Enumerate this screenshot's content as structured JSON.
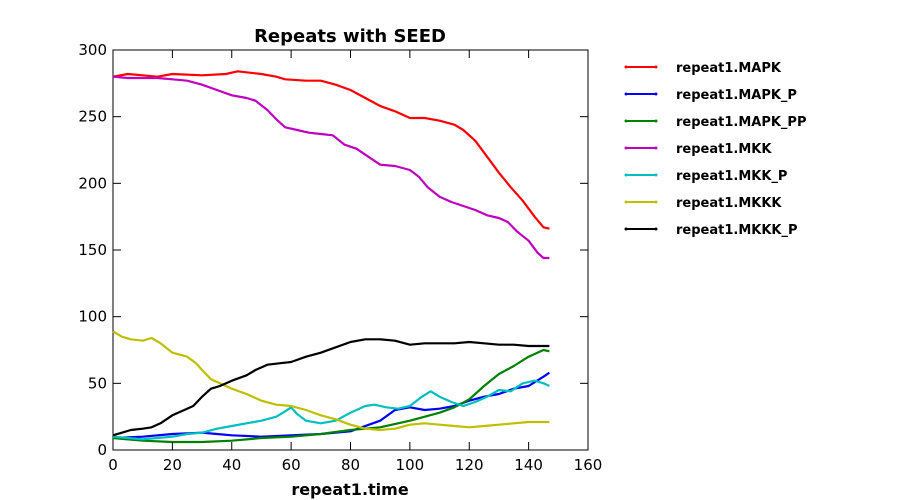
{
  "chart_data": {
    "type": "line",
    "title": "Repeats with SEED",
    "xlabel": "repeat1.time",
    "ylabel": "",
    "xlim": [
      0,
      160
    ],
    "ylim": [
      0,
      300
    ],
    "xticks": [
      0,
      20,
      40,
      60,
      80,
      100,
      120,
      140,
      160
    ],
    "yticks": [
      0,
      50,
      100,
      150,
      200,
      250,
      300
    ],
    "grid": false,
    "legend_position": "outside-right",
    "series": [
      {
        "name": "repeat1.MAPK",
        "color": "#ff0000",
        "points": [
          [
            0,
            280
          ],
          [
            5,
            282
          ],
          [
            10,
            281
          ],
          [
            15,
            280
          ],
          [
            20,
            282
          ],
          [
            30,
            281
          ],
          [
            38,
            282
          ],
          [
            42,
            284
          ],
          [
            46,
            283
          ],
          [
            50,
            282
          ],
          [
            55,
            280
          ],
          [
            58,
            278
          ],
          [
            65,
            277
          ],
          [
            70,
            277
          ],
          [
            75,
            274
          ],
          [
            80,
            270
          ],
          [
            85,
            264
          ],
          [
            90,
            258
          ],
          [
            95,
            254
          ],
          [
            100,
            249
          ],
          [
            105,
            249
          ],
          [
            110,
            247
          ],
          [
            115,
            244
          ],
          [
            118,
            240
          ],
          [
            122,
            232
          ],
          [
            126,
            220
          ],
          [
            130,
            208
          ],
          [
            134,
            197
          ],
          [
            138,
            187
          ],
          [
            142,
            175
          ],
          [
            145,
            167
          ],
          [
            147,
            166
          ]
        ]
      },
      {
        "name": "repeat1.MAPK_P",
        "color": "#0000ff",
        "points": [
          [
            0,
            9
          ],
          [
            10,
            10
          ],
          [
            20,
            12
          ],
          [
            30,
            13
          ],
          [
            35,
            12
          ],
          [
            40,
            11
          ],
          [
            50,
            10
          ],
          [
            60,
            11
          ],
          [
            70,
            12
          ],
          [
            80,
            14
          ],
          [
            90,
            22
          ],
          [
            95,
            30
          ],
          [
            100,
            32
          ],
          [
            105,
            30
          ],
          [
            110,
            31
          ],
          [
            115,
            33
          ],
          [
            120,
            37
          ],
          [
            125,
            40
          ],
          [
            130,
            42
          ],
          [
            135,
            46
          ],
          [
            140,
            48
          ],
          [
            145,
            55
          ],
          [
            147,
            58
          ]
        ]
      },
      {
        "name": "repeat1.MAPK_PP",
        "color": "#008000",
        "points": [
          [
            0,
            9
          ],
          [
            10,
            7
          ],
          [
            20,
            6
          ],
          [
            30,
            6
          ],
          [
            40,
            7
          ],
          [
            50,
            9
          ],
          [
            60,
            10
          ],
          [
            70,
            12
          ],
          [
            80,
            15
          ],
          [
            90,
            17
          ],
          [
            100,
            22
          ],
          [
            110,
            28
          ],
          [
            115,
            32
          ],
          [
            120,
            38
          ],
          [
            125,
            48
          ],
          [
            130,
            57
          ],
          [
            135,
            63
          ],
          [
            140,
            70
          ],
          [
            145,
            75
          ],
          [
            147,
            74
          ]
        ]
      },
      {
        "name": "repeat1.MKK",
        "color": "#bf00bf",
        "points": [
          [
            0,
            280
          ],
          [
            5,
            279
          ],
          [
            10,
            279
          ],
          [
            15,
            279
          ],
          [
            20,
            278
          ],
          [
            25,
            277
          ],
          [
            30,
            274
          ],
          [
            35,
            270
          ],
          [
            40,
            266
          ],
          [
            45,
            264
          ],
          [
            48,
            262
          ],
          [
            52,
            255
          ],
          [
            55,
            248
          ],
          [
            58,
            242
          ],
          [
            62,
            240
          ],
          [
            66,
            238
          ],
          [
            70,
            237
          ],
          [
            74,
            236
          ],
          [
            78,
            229
          ],
          [
            82,
            226
          ],
          [
            86,
            220
          ],
          [
            90,
            214
          ],
          [
            95,
            213
          ],
          [
            100,
            210
          ],
          [
            103,
            205
          ],
          [
            106,
            197
          ],
          [
            110,
            190
          ],
          [
            114,
            186
          ],
          [
            118,
            183
          ],
          [
            122,
            180
          ],
          [
            126,
            176
          ],
          [
            130,
            174
          ],
          [
            133,
            171
          ],
          [
            136,
            164
          ],
          [
            140,
            157
          ],
          [
            143,
            148
          ],
          [
            145,
            144
          ],
          [
            147,
            144
          ]
        ]
      },
      {
        "name": "repeat1.MKK_P",
        "color": "#00bfbf",
        "points": [
          [
            0,
            10
          ],
          [
            5,
            9
          ],
          [
            10,
            8
          ],
          [
            15,
            9
          ],
          [
            20,
            10
          ],
          [
            25,
            12
          ],
          [
            30,
            13
          ],
          [
            35,
            16
          ],
          [
            40,
            18
          ],
          [
            45,
            20
          ],
          [
            50,
            22
          ],
          [
            55,
            25
          ],
          [
            58,
            29
          ],
          [
            60,
            32
          ],
          [
            62,
            27
          ],
          [
            65,
            22
          ],
          [
            70,
            20
          ],
          [
            75,
            22
          ],
          [
            80,
            28
          ],
          [
            85,
            33
          ],
          [
            88,
            34
          ],
          [
            92,
            32
          ],
          [
            96,
            31
          ],
          [
            100,
            33
          ],
          [
            104,
            40
          ],
          [
            107,
            44
          ],
          [
            110,
            40
          ],
          [
            114,
            36
          ],
          [
            118,
            33
          ],
          [
            122,
            36
          ],
          [
            126,
            40
          ],
          [
            130,
            45
          ],
          [
            134,
            44
          ],
          [
            138,
            50
          ],
          [
            142,
            52
          ],
          [
            145,
            50
          ],
          [
            147,
            48
          ]
        ]
      },
      {
        "name": "repeat1.MKKK",
        "color": "#bfbf00",
        "points": [
          [
            0,
            89
          ],
          [
            3,
            85
          ],
          [
            6,
            83
          ],
          [
            10,
            82
          ],
          [
            13,
            84
          ],
          [
            16,
            80
          ],
          [
            20,
            73
          ],
          [
            25,
            70
          ],
          [
            28,
            65
          ],
          [
            30,
            60
          ],
          [
            33,
            53
          ],
          [
            36,
            50
          ],
          [
            40,
            46
          ],
          [
            45,
            42
          ],
          [
            50,
            37
          ],
          [
            55,
            34
          ],
          [
            60,
            33
          ],
          [
            65,
            30
          ],
          [
            70,
            26
          ],
          [
            75,
            23
          ],
          [
            80,
            19
          ],
          [
            85,
            16
          ],
          [
            90,
            15
          ],
          [
            95,
            16
          ],
          [
            100,
            19
          ],
          [
            105,
            20
          ],
          [
            110,
            19
          ],
          [
            115,
            18
          ],
          [
            120,
            17
          ],
          [
            125,
            18
          ],
          [
            130,
            19
          ],
          [
            135,
            20
          ],
          [
            140,
            21
          ],
          [
            145,
            21
          ],
          [
            147,
            21
          ]
        ]
      },
      {
        "name": "repeat1.MKKK_P",
        "color": "#000000",
        "points": [
          [
            0,
            11
          ],
          [
            3,
            13
          ],
          [
            6,
            15
          ],
          [
            10,
            16
          ],
          [
            13,
            17
          ],
          [
            16,
            20
          ],
          [
            20,
            26
          ],
          [
            24,
            30
          ],
          [
            27,
            33
          ],
          [
            30,
            40
          ],
          [
            33,
            46
          ],
          [
            36,
            48
          ],
          [
            40,
            52
          ],
          [
            45,
            56
          ],
          [
            48,
            60
          ],
          [
            52,
            64
          ],
          [
            56,
            65
          ],
          [
            60,
            66
          ],
          [
            65,
            70
          ],
          [
            70,
            73
          ],
          [
            75,
            77
          ],
          [
            80,
            81
          ],
          [
            85,
            83
          ],
          [
            90,
            83
          ],
          [
            95,
            82
          ],
          [
            100,
            79
          ],
          [
            105,
            80
          ],
          [
            110,
            80
          ],
          [
            115,
            80
          ],
          [
            120,
            81
          ],
          [
            125,
            80
          ],
          [
            130,
            79
          ],
          [
            135,
            79
          ],
          [
            140,
            78
          ],
          [
            145,
            78
          ],
          [
            147,
            78
          ]
        ]
      }
    ]
  }
}
